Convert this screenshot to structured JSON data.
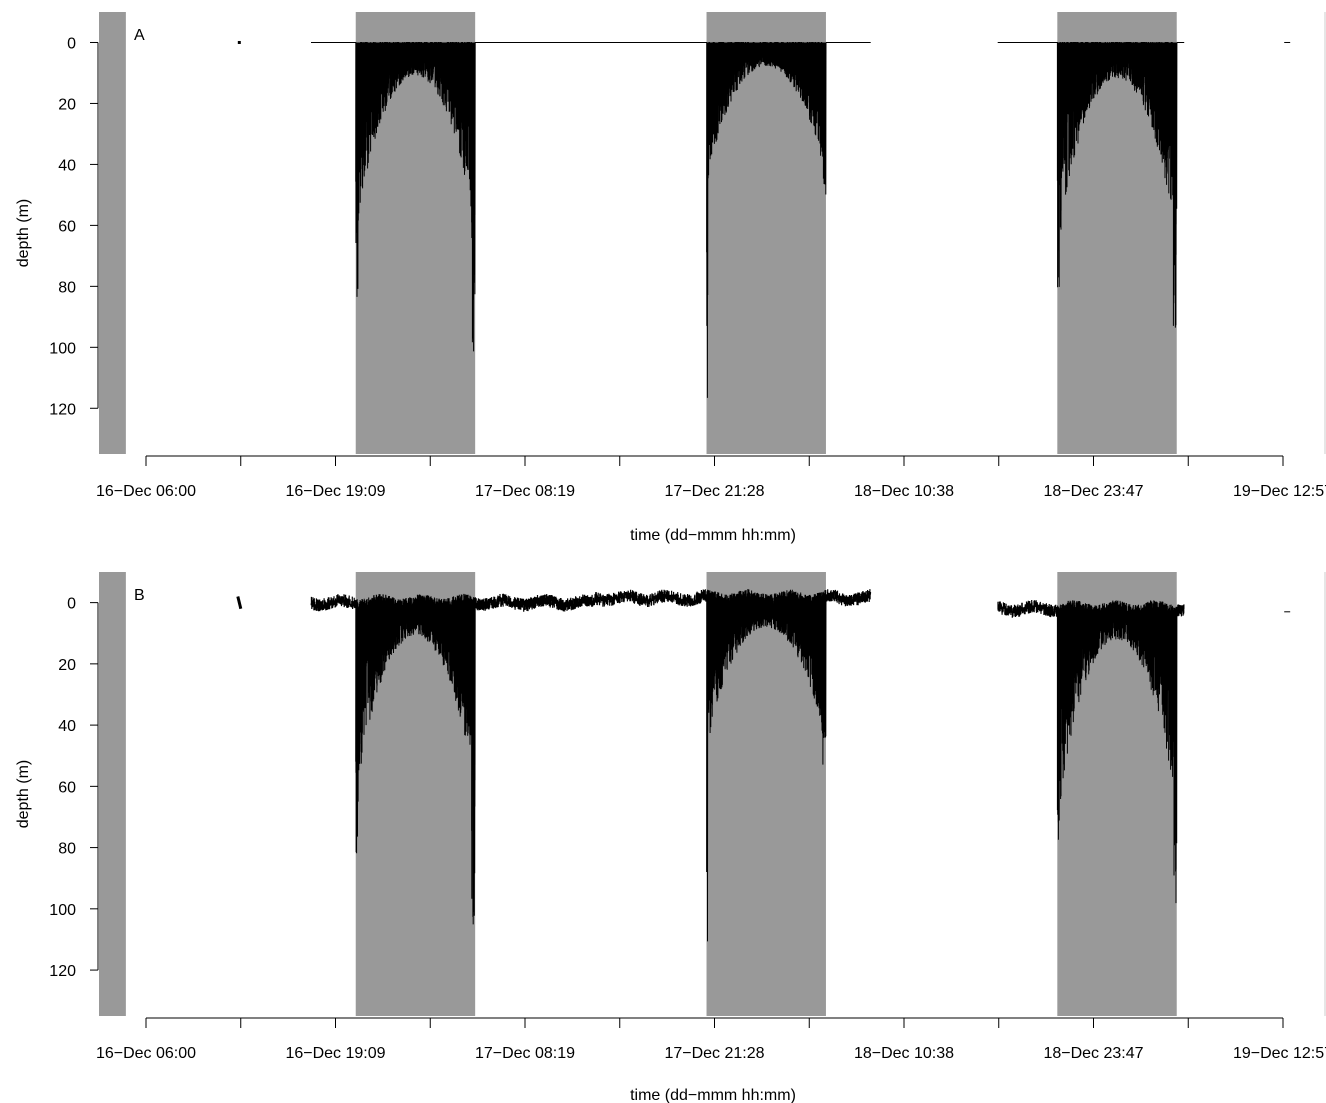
{
  "colors": {
    "night_shading": "#999999",
    "trace": "#000000",
    "axis": "#000000",
    "background": "#ffffff"
  },
  "chart_data": [
    {
      "type": "line",
      "panel": "A",
      "xlabel": "time (dd−mmm hh:mm)",
      "ylabel": "depth (m)",
      "x_tick_labels": [
        "16−Dec 06:00",
        "16−Dec 19:09",
        "17−Dec 08:19",
        "17−Dec 21:28",
        "18−Dec 10:38",
        "18−Dec 23:47",
        "19−Dec 12:57"
      ],
      "y_ticks": [
        0,
        20,
        40,
        60,
        80,
        100,
        120
      ],
      "y_axis_inverted": true,
      "ylim": [
        -10,
        135
      ],
      "xlim_hours": [
        -3.2,
        79
      ],
      "night_periods_hours": [
        [
          -3.2,
          -1.4
        ],
        [
          14.0,
          22.0
        ],
        [
          37.5,
          45.5
        ],
        [
          61.0,
          69.0
        ]
      ],
      "surface_noise": false,
      "gaps_hours": [
        [
          6.3,
          11.0
        ],
        [
          48.5,
          57.0
        ]
      ],
      "bouts": [
        {
          "start": 14.0,
          "end": 22.0,
          "peak": 72,
          "edge_start": 84,
          "edge_end": 112
        },
        {
          "start": 37.5,
          "end": 45.5,
          "peak": 52,
          "edge_start": 128,
          "edge_end": 57
        },
        {
          "start": 61.0,
          "end": 69.0,
          "peak": 78,
          "edge_start": 88,
          "edge_end": 101
        }
      ]
    },
    {
      "type": "line",
      "panel": "B",
      "xlabel": "time (dd−mmm hh:mm)",
      "ylabel": "depth (m)",
      "x_tick_labels": [
        "16−Dec 06:00",
        "16−Dec 19:09",
        "17−Dec 08:19",
        "17−Dec 21:28",
        "18−Dec 10:38",
        "18−Dec 23:47",
        "19−Dec 12:57"
      ],
      "y_ticks": [
        0,
        20,
        40,
        60,
        80,
        100,
        120
      ],
      "y_axis_inverted": true,
      "ylim": [
        -10,
        135
      ],
      "xlim_hours": [
        -3.2,
        79
      ],
      "night_periods_hours": [
        [
          -3.2,
          -1.4
        ],
        [
          14.0,
          22.0
        ],
        [
          37.5,
          45.5
        ],
        [
          61.0,
          69.0
        ]
      ],
      "surface_noise": true,
      "gaps_hours": [
        [
          6.3,
          11.0
        ],
        [
          48.5,
          57.0
        ]
      ],
      "bouts": [
        {
          "start": 14.0,
          "end": 22.0,
          "peak": 72,
          "edge_start": 84,
          "edge_end": 110
        },
        {
          "start": 37.5,
          "end": 45.5,
          "peak": 54,
          "edge_start": 128,
          "edge_end": 57
        },
        {
          "start": 61.0,
          "end": 69.0,
          "peak": 80,
          "edge_start": 90,
          "edge_end": 104
        }
      ]
    }
  ]
}
